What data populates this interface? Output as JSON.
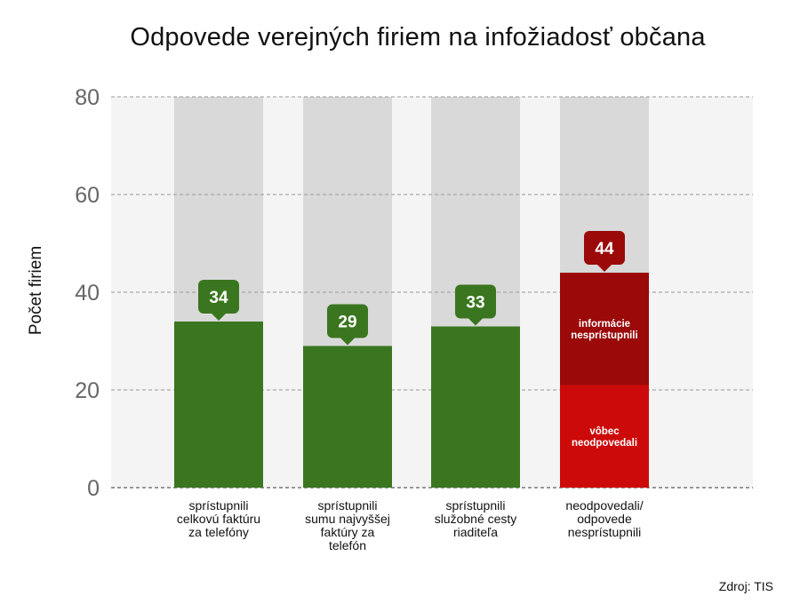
{
  "title": "Odpovede verejných firiem na infožiadosť občana",
  "source": "Zdroj: TIS",
  "colors": {
    "green": "#3a761f",
    "dark_red": "#9b0909",
    "red": "#cc0a0a",
    "background_bar": "#d9d9d9",
    "plot_band": "#f4f4f4",
    "grid": "#999999"
  },
  "chart_data": {
    "type": "bar",
    "title": "Odpovede verejných firiem na infožiadosť občana",
    "ylabel": "Počet firiem",
    "xlabel": "",
    "ylim": [
      0,
      80
    ],
    "yticks": [
      0,
      20,
      40,
      60,
      80
    ],
    "grid": true,
    "categories": [
      "sprístupnili\ncelkovú faktúru\nza telefóny",
      "sprístupnili\nsumu najvyššej\nfaktúry za\ntelefón",
      "sprístupnili\nslužobné cesty\nriaditeľa",
      "neodpovedali/\nodpovede\nnesprístupnili"
    ],
    "values": [
      34,
      29,
      33,
      44
    ],
    "data_labels": [
      "34",
      "29",
      "33",
      "44"
    ],
    "stacked_last": [
      {
        "label": "vôbec\nneodpovedali",
        "value": 21
      },
      {
        "label": "informácie\nnesprístupnili",
        "value": 23
      }
    ],
    "background_max": 80
  }
}
